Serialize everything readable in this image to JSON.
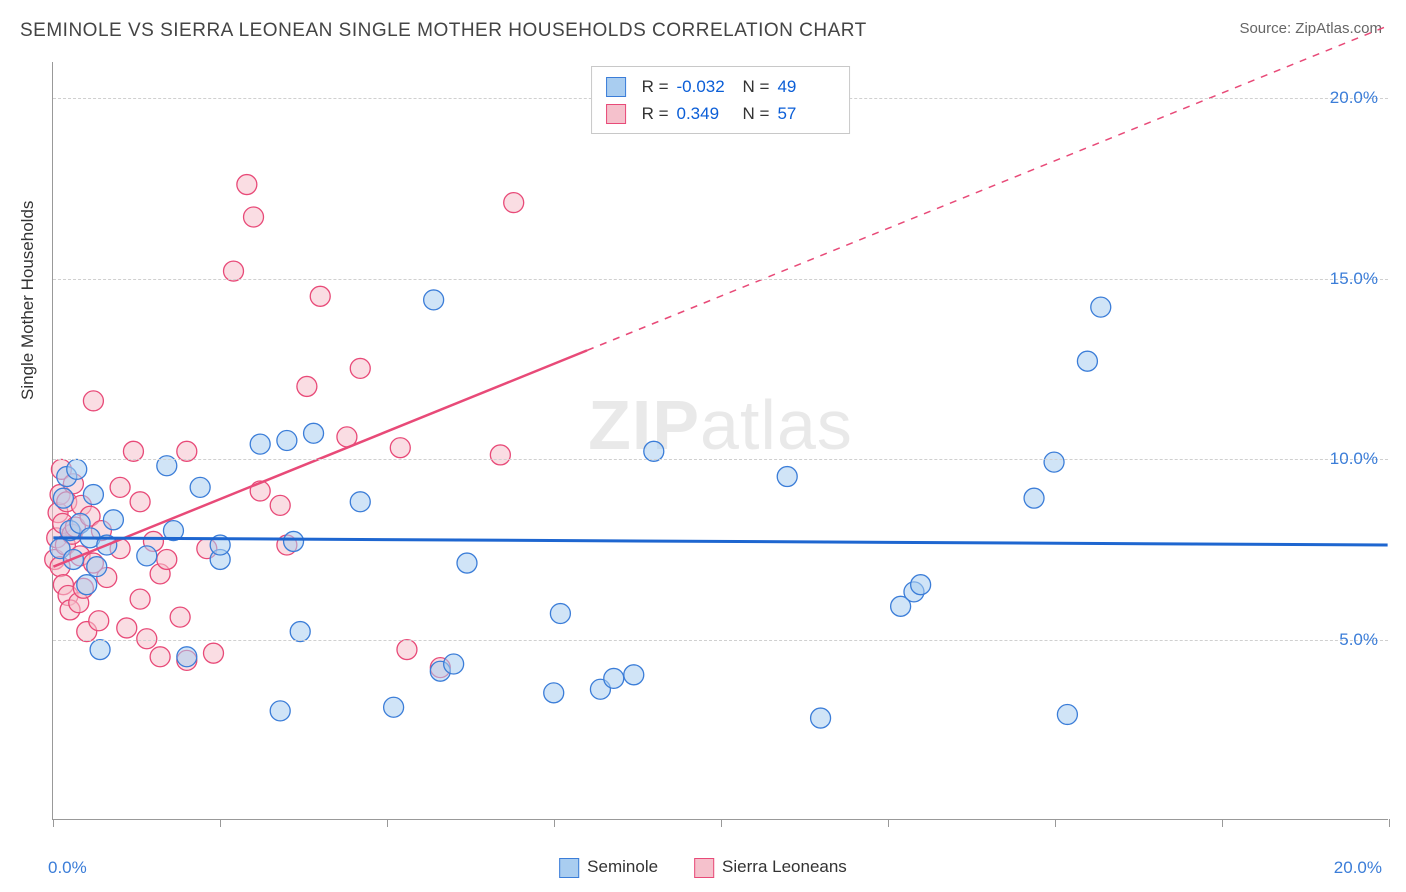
{
  "header": {
    "title": "SEMINOLE VS SIERRA LEONEAN SINGLE MOTHER HOUSEHOLDS CORRELATION CHART",
    "source": "Source: ZipAtlas.com"
  },
  "axis": {
    "y_label": "Single Mother Households",
    "x_min": 0.0,
    "x_max": 20.0,
    "y_min": 0.0,
    "y_max": 21.0,
    "x_label_left": "0.0%",
    "x_label_right": "20.0%",
    "x_ticks": [
      0,
      2.5,
      5,
      7.5,
      10,
      12.5,
      15,
      17.5,
      20
    ],
    "y_gridlines": [
      {
        "v": 5.0,
        "label": "5.0%"
      },
      {
        "v": 10.0,
        "label": "10.0%"
      },
      {
        "v": 15.0,
        "label": "15.0%"
      },
      {
        "v": 20.0,
        "label": "20.0%"
      }
    ]
  },
  "series": {
    "blue": {
      "name": "Seminole",
      "R": "-0.032",
      "N": "49",
      "fill": "#a9cdf0",
      "stroke": "#3b7dd8",
      "line_color": "#1e66d0",
      "line_width": 3,
      "trend": {
        "y_at_xmin": 7.8,
        "y_at_xmax": 7.6
      },
      "marker_r": 10,
      "marker_opacity": 0.55,
      "points": [
        [
          0.1,
          7.5
        ],
        [
          0.15,
          8.9
        ],
        [
          0.2,
          9.5
        ],
        [
          0.25,
          8.0
        ],
        [
          0.3,
          7.2
        ],
        [
          0.35,
          9.7
        ],
        [
          0.4,
          8.2
        ],
        [
          0.5,
          6.5
        ],
        [
          0.55,
          7.8
        ],
        [
          0.6,
          9.0
        ],
        [
          0.65,
          7.0
        ],
        [
          0.7,
          4.7
        ],
        [
          0.8,
          7.6
        ],
        [
          0.9,
          8.3
        ],
        [
          1.4,
          7.3
        ],
        [
          1.7,
          9.8
        ],
        [
          1.8,
          8.0
        ],
        [
          2.2,
          9.2
        ],
        [
          2.5,
          7.2
        ],
        [
          2.0,
          4.5
        ],
        [
          2.5,
          7.6
        ],
        [
          3.4,
          3.0
        ],
        [
          3.5,
          10.5
        ],
        [
          3.1,
          10.4
        ],
        [
          3.9,
          10.7
        ],
        [
          3.6,
          7.7
        ],
        [
          3.7,
          5.2
        ],
        [
          4.6,
          8.8
        ],
        [
          5.1,
          3.1
        ],
        [
          5.7,
          14.4
        ],
        [
          5.8,
          4.1
        ],
        [
          6.0,
          4.3
        ],
        [
          6.2,
          7.1
        ],
        [
          7.5,
          3.5
        ],
        [
          7.6,
          5.7
        ],
        [
          8.2,
          3.6
        ],
        [
          8.4,
          3.9
        ],
        [
          8.7,
          4.0
        ],
        [
          9.0,
          10.2
        ],
        [
          11.0,
          9.5
        ],
        [
          11.5,
          2.8
        ],
        [
          12.7,
          5.9
        ],
        [
          12.9,
          6.3
        ],
        [
          13.0,
          6.5
        ],
        [
          14.7,
          8.9
        ],
        [
          15.0,
          9.9
        ],
        [
          15.2,
          2.9
        ],
        [
          15.5,
          12.7
        ],
        [
          15.7,
          14.2
        ]
      ]
    },
    "pink": {
      "name": "Sierra Leoneans",
      "R": "0.349",
      "N": "57",
      "fill": "#f5c1cc",
      "stroke": "#e84a78",
      "line_color": "#e84a78",
      "line_width": 2.5,
      "trend": {
        "y_at_xmin": 7.0,
        "y_at_xmax": 22.0
      },
      "dash_after_x": 8.0,
      "marker_r": 10,
      "marker_opacity": 0.55,
      "points": [
        [
          0.02,
          7.2
        ],
        [
          0.05,
          7.8
        ],
        [
          0.07,
          8.5
        ],
        [
          0.1,
          7.0
        ],
        [
          0.1,
          9.0
        ],
        [
          0.12,
          9.7
        ],
        [
          0.14,
          8.2
        ],
        [
          0.15,
          6.5
        ],
        [
          0.18,
          7.6
        ],
        [
          0.2,
          8.8
        ],
        [
          0.22,
          6.2
        ],
        [
          0.25,
          5.8
        ],
        [
          0.28,
          7.9
        ],
        [
          0.3,
          9.3
        ],
        [
          0.33,
          8.1
        ],
        [
          0.38,
          6.0
        ],
        [
          0.4,
          7.3
        ],
        [
          0.42,
          8.7
        ],
        [
          0.45,
          6.4
        ],
        [
          0.5,
          5.2
        ],
        [
          0.55,
          8.4
        ],
        [
          0.6,
          11.6
        ],
        [
          0.6,
          7.1
        ],
        [
          0.68,
          5.5
        ],
        [
          0.72,
          8.0
        ],
        [
          0.8,
          6.7
        ],
        [
          1.0,
          7.5
        ],
        [
          1.0,
          9.2
        ],
        [
          1.1,
          5.3
        ],
        [
          1.2,
          10.2
        ],
        [
          1.3,
          6.1
        ],
        [
          1.3,
          8.8
        ],
        [
          1.4,
          5.0
        ],
        [
          1.5,
          7.7
        ],
        [
          1.6,
          6.8
        ],
        [
          1.6,
          4.5
        ],
        [
          1.7,
          7.2
        ],
        [
          1.9,
          5.6
        ],
        [
          2.0,
          4.4
        ],
        [
          2.0,
          10.2
        ],
        [
          2.3,
          7.5
        ],
        [
          2.4,
          4.6
        ],
        [
          2.7,
          15.2
        ],
        [
          2.9,
          17.6
        ],
        [
          3.0,
          16.7
        ],
        [
          3.1,
          9.1
        ],
        [
          3.4,
          8.7
        ],
        [
          3.5,
          7.6
        ],
        [
          3.8,
          12.0
        ],
        [
          4.0,
          14.5
        ],
        [
          4.4,
          10.6
        ],
        [
          4.6,
          12.5
        ],
        [
          5.2,
          10.3
        ],
        [
          5.3,
          4.7
        ],
        [
          5.8,
          4.2
        ],
        [
          6.7,
          10.1
        ],
        [
          6.9,
          17.1
        ]
      ]
    }
  },
  "legend_bottom": {
    "blue_label": "Seminole",
    "pink_label": "Sierra Leoneans"
  },
  "legend_top": {
    "r_label": "R =",
    "n_label": "N ="
  },
  "watermark": {
    "bold": "ZIP",
    "rest": "atlas"
  },
  "colors": {
    "grid": "#d0d0d0",
    "axis": "#999999",
    "bg": "#ffffff",
    "text": "#333333",
    "accent": "#3b7dd8"
  }
}
